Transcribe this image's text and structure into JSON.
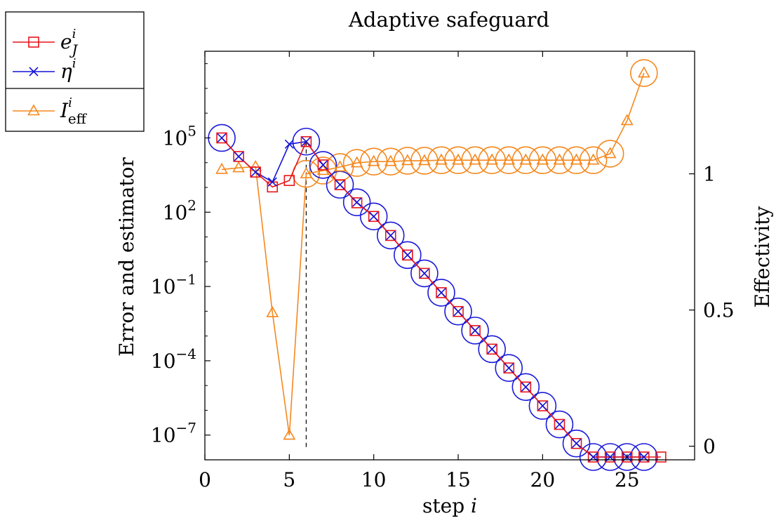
{
  "chart_data": {
    "type": "line",
    "title": "Adaptive safeguard",
    "xlabel": "step i",
    "ylabel": "Error and estimator",
    "y2label": "Effectivity",
    "xlim": [
      0,
      29
    ],
    "ylim_log10": [
      -8,
      8.5
    ],
    "y2lim": [
      -0.05,
      1.45
    ],
    "x_ticks": [
      "0",
      "5",
      "10",
      "15",
      "20",
      "25"
    ],
    "x_tick_values": [
      0,
      5,
      10,
      15,
      20,
      25
    ],
    "y_tick_exponents": [
      "5",
      "2",
      "−1",
      "−4",
      "−7"
    ],
    "y_tick_values": [
      5,
      2,
      -1,
      -4,
      -7
    ],
    "y2_ticks": [
      "1",
      "0.5",
      "0"
    ],
    "y2_tick_values": [
      1,
      0.5,
      0
    ],
    "legend_position": "outside-top-left",
    "colors": {
      "error": "#e8151b",
      "estimator": "#1414d6",
      "effectivity": "#f5881e",
      "circle": "#1a1ad9"
    },
    "safeguard_step": 6,
    "series": [
      {
        "name": "e_J^i",
        "label_base": "e",
        "label_sup": "i",
        "label_sub": "J",
        "marker": "square",
        "axis": "left-log10",
        "x": [
          1,
          2,
          3,
          4,
          5,
          6,
          7,
          8,
          9,
          10,
          11,
          12,
          13,
          14,
          15,
          16,
          17,
          18,
          19,
          20,
          21,
          22,
          23,
          24,
          25,
          26,
          27
        ],
        "y": [
          5.0,
          4.25,
          3.62,
          3.02,
          3.28,
          4.85,
          3.91,
          3.11,
          2.38,
          1.83,
          1.06,
          0.27,
          -0.47,
          -1.25,
          -2.01,
          -2.78,
          -3.53,
          -4.29,
          -5.06,
          -5.82,
          -6.57,
          -7.34,
          -8.09,
          -8.85,
          -9.61,
          -10.11,
          -10.11
        ]
      },
      {
        "name": "η^i",
        "label_base": "η",
        "label_sup": "i",
        "marker": "cross",
        "axis": "left-log10",
        "x": [
          1,
          2,
          3,
          4,
          5,
          6,
          7,
          8,
          9,
          10,
          11,
          12,
          13,
          14,
          15,
          16,
          17,
          18,
          19,
          20,
          21,
          22,
          23,
          24,
          25,
          26
        ],
        "y": [
          5.0,
          4.25,
          3.62,
          3.22,
          4.75,
          4.85,
          3.91,
          3.11,
          2.4,
          1.83,
          1.06,
          0.27,
          -0.47,
          -1.25,
          -2.01,
          -2.78,
          -3.53,
          -4.29,
          -5.06,
          -5.82,
          -6.57,
          -7.34,
          -8.09,
          -8.85,
          -9.61,
          -10.25
        ]
      },
      {
        "name": "I_eff^i",
        "label_base": "I",
        "label_sup": "i",
        "label_sub": "eff",
        "marker": "triangle",
        "axis": "right-linear",
        "x": [
          1,
          2,
          3,
          4,
          5,
          6,
          7,
          8,
          9,
          10,
          11,
          12,
          13,
          14,
          15,
          16,
          17,
          18,
          19,
          20,
          21,
          22,
          23,
          24,
          25,
          26
        ],
        "y": [
          1.016,
          1.022,
          1.026,
          0.49,
          0.04,
          1.0,
          1.012,
          1.025,
          1.04,
          1.045,
          1.045,
          1.048,
          1.048,
          1.05,
          1.05,
          1.05,
          1.05,
          1.05,
          1.05,
          1.05,
          1.05,
          1.05,
          1.05,
          1.074,
          1.195,
          1.37
        ]
      }
    ],
    "circled_steps_estimator": [
      1,
      6,
      7,
      8,
      9,
      10,
      11,
      12,
      13,
      14,
      15,
      16,
      17,
      18,
      19,
      20,
      21,
      22,
      23,
      24,
      25,
      26
    ],
    "circled_steps_effectivity": [
      6,
      7,
      8,
      9,
      10,
      11,
      12,
      13,
      14,
      15,
      16,
      17,
      18,
      19,
      20,
      21,
      22,
      23,
      24,
      26
    ]
  }
}
